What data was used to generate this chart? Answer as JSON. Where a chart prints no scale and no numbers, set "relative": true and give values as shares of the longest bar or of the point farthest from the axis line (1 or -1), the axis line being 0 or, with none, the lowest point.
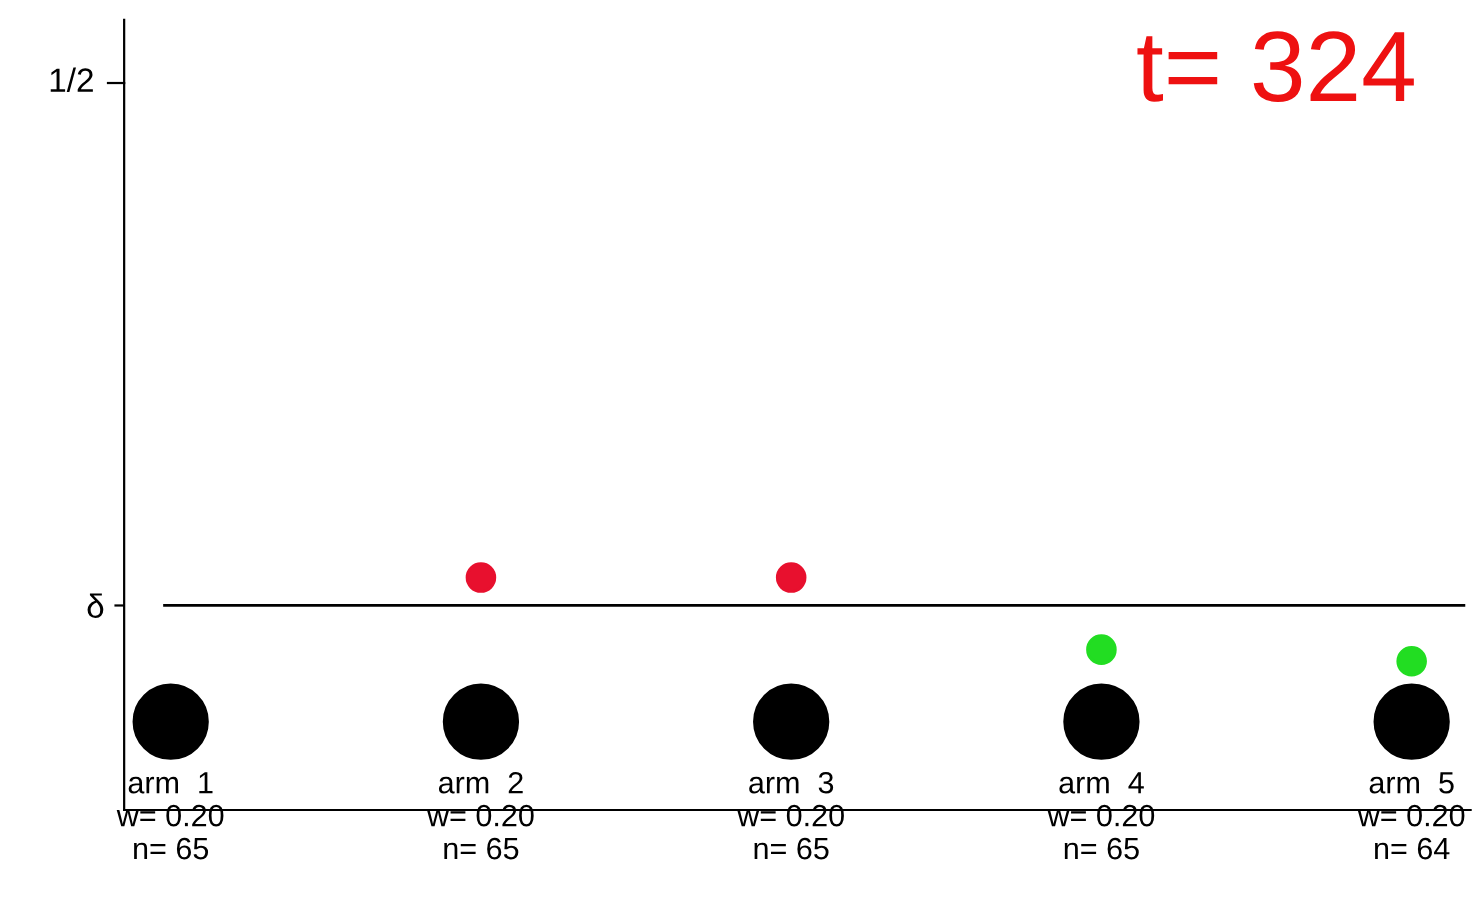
{
  "chart_data": {
    "type": "scatter",
    "categories": [
      "arm  1\nw= 0.20\nn= 65",
      "arm  2\nw= 0.20\nn= 65",
      "arm  3\nw= 0.20\nn= 65",
      "arm  4\nw= 0.20\nn= 65",
      "arm  5\nw= 0.20\nn= 64"
    ],
    "series": [
      {
        "color": "#000000",
        "values": [
          0.38,
          0.38,
          0.38,
          0.38,
          0.38
        ]
      },
      {
        "color": "#e8102e",
        "values": [
          null,
          1,
          1,
          null,
          null
        ]
      },
      {
        "color": "#22dd22",
        "values": [
          null,
          null,
          null,
          0.69,
          0.64
        ]
      }
    ],
    "relative": true,
    "ref_lines": [
      {
        "axis": "y",
        "value": 0.88,
        "label": "δ",
        "color": "#000000"
      }
    ],
    "annotations": [
      "1/2",
      "t= 324"
    ],
    "marker": "circle",
    "grid": false,
    "legend": false
  }
}
